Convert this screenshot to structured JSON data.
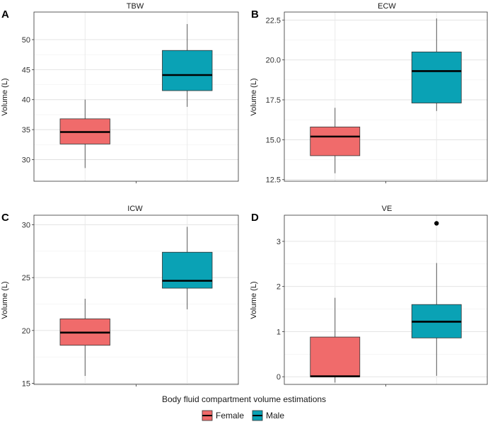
{
  "figure": {
    "shared_xlabel": "Body fluid compartment volume estimations",
    "legend": [
      {
        "label": "Female",
        "color": "#F06B6B"
      },
      {
        "label": "Male",
        "color": "#0AA2B5"
      }
    ]
  },
  "chart_data": [
    {
      "type": "boxplot",
      "panel_letter": "A",
      "title": "TBW",
      "ylabel": "Volume (L)",
      "ylim": [
        26.4,
        54.6
      ],
      "yticks": [
        30,
        35,
        40,
        45,
        50
      ],
      "ytick_labels": [
        "30",
        "35",
        "40",
        "45",
        "50"
      ],
      "series": [
        {
          "name": "Female",
          "color": "#F06B6B",
          "min": 28.6,
          "q1": 32.6,
          "median": 34.6,
          "q3": 36.8,
          "max": 40.0,
          "outliers": []
        },
        {
          "name": "Male",
          "color": "#0AA2B5",
          "min": 38.8,
          "q1": 41.5,
          "median": 44.1,
          "q3": 48.2,
          "max": 52.6,
          "outliers": []
        }
      ]
    },
    {
      "type": "boxplot",
      "panel_letter": "B",
      "title": "ECW",
      "ylabel": "Volume (L)",
      "ylim": [
        12.4,
        23.0
      ],
      "yticks": [
        12.5,
        15.0,
        17.5,
        20.0,
        22.5
      ],
      "ytick_labels": [
        "12.5",
        "15.0",
        "17.5",
        "20.0",
        "22.5"
      ],
      "series": [
        {
          "name": "Female",
          "color": "#F06B6B",
          "min": 12.9,
          "q1": 14.0,
          "median": 15.2,
          "q3": 15.8,
          "max": 17.0,
          "outliers": []
        },
        {
          "name": "Male",
          "color": "#0AA2B5",
          "min": 16.8,
          "q1": 17.3,
          "median": 19.3,
          "q3": 20.5,
          "max": 22.6,
          "outliers": []
        }
      ]
    },
    {
      "type": "boxplot",
      "panel_letter": "C",
      "title": "ICW",
      "ylabel": "Volume (L)",
      "ylim": [
        14.9,
        30.9
      ],
      "yticks": [
        15,
        20,
        25,
        30
      ],
      "ytick_labels": [
        "15",
        "20",
        "25",
        "30"
      ],
      "series": [
        {
          "name": "Female",
          "color": "#F06B6B",
          "min": 15.7,
          "q1": 18.6,
          "median": 19.8,
          "q3": 21.1,
          "max": 23.0,
          "outliers": []
        },
        {
          "name": "Male",
          "color": "#0AA2B5",
          "min": 22.0,
          "q1": 24.0,
          "median": 24.7,
          "q3": 27.4,
          "max": 29.8,
          "outliers": []
        }
      ]
    },
    {
      "type": "boxplot",
      "panel_letter": "D",
      "title": "VE",
      "ylabel": "Volume (L)",
      "ylim": [
        -0.17,
        3.58
      ],
      "yticks": [
        0,
        1,
        2,
        3
      ],
      "ytick_labels": [
        "0",
        "1",
        "2",
        "3"
      ],
      "series": [
        {
          "name": "Female",
          "color": "#F06B6B",
          "min": -0.13,
          "q1": 0.0,
          "median": 0.01,
          "q3": 0.88,
          "max": 1.75,
          "outliers": []
        },
        {
          "name": "Male",
          "color": "#0AA2B5",
          "min": 0.02,
          "q1": 0.86,
          "median": 1.22,
          "q3": 1.6,
          "max": 2.52,
          "outliers": [
            3.4
          ]
        }
      ]
    }
  ]
}
